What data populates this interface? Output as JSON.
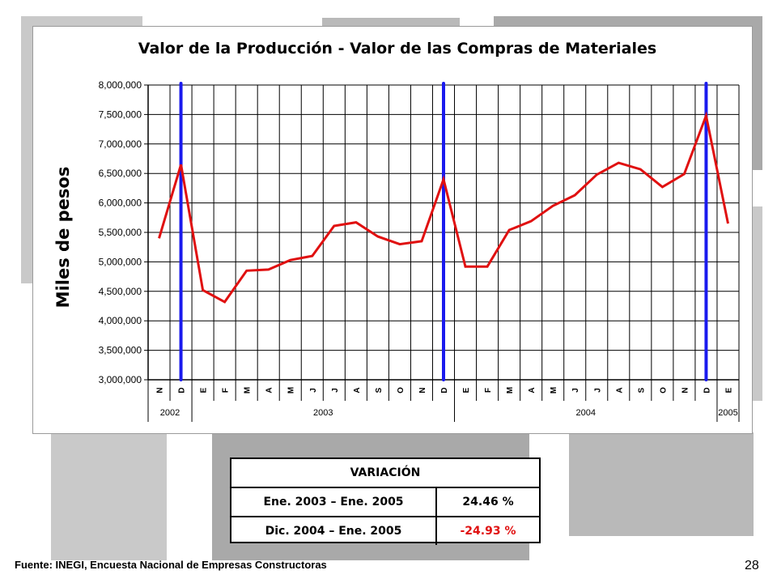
{
  "chart_data": {
    "type": "line",
    "title": "Valor de la Producción - Valor de las Compras de Materiales",
    "ylabel": "Miles de pesos",
    "xlabel": "",
    "ylim": [
      3000000,
      8000000
    ],
    "y_ticks": [
      "3,000,000",
      "3,500,000",
      "4,000,000",
      "4,500,000",
      "5,000,000",
      "5,500,000",
      "6,000,000",
      "6,500,000",
      "7,000,000",
      "7,500,000",
      "8,000,000"
    ],
    "categories": [
      "N",
      "D",
      "E",
      "F",
      "M",
      "A",
      "M",
      "J",
      "J",
      "A",
      "S",
      "O",
      "N",
      "D",
      "E",
      "F",
      "M",
      "A",
      "M",
      "J",
      "J",
      "A",
      "S",
      "O",
      "N",
      "D",
      "E"
    ],
    "year_labels": [
      "2002",
      "2003",
      "2004",
      "2005"
    ],
    "series": [
      {
        "color": "#e01010",
        "values": [
          5400000,
          6650000,
          4520000,
          4320000,
          4850000,
          4870000,
          5030000,
          5100000,
          5610000,
          5670000,
          5430000,
          5300000,
          5350000,
          6400000,
          4920000,
          4920000,
          5540000,
          5690000,
          5950000,
          6130000,
          6480000,
          6680000,
          6570000,
          6270000,
          6490000,
          7480000,
          5650000
        ]
      }
    ],
    "markers": {
      "color": "#1a1aee",
      "categories": [
        1,
        13,
        25
      ]
    },
    "grid": true
  },
  "variation": {
    "header": "VARIACIÓN",
    "rows": [
      {
        "period": "Ene. 2003 – Ene. 2005",
        "value": "24.46 %",
        "color": "#000000"
      },
      {
        "period": "Dic. 2004 – Ene. 2005",
        "value": "-24.93 %",
        "color": "#e01010"
      }
    ]
  },
  "footer": {
    "source": "Fuente: INEGI, Encuesta Nacional de Empresas Constructoras",
    "page": "28"
  }
}
